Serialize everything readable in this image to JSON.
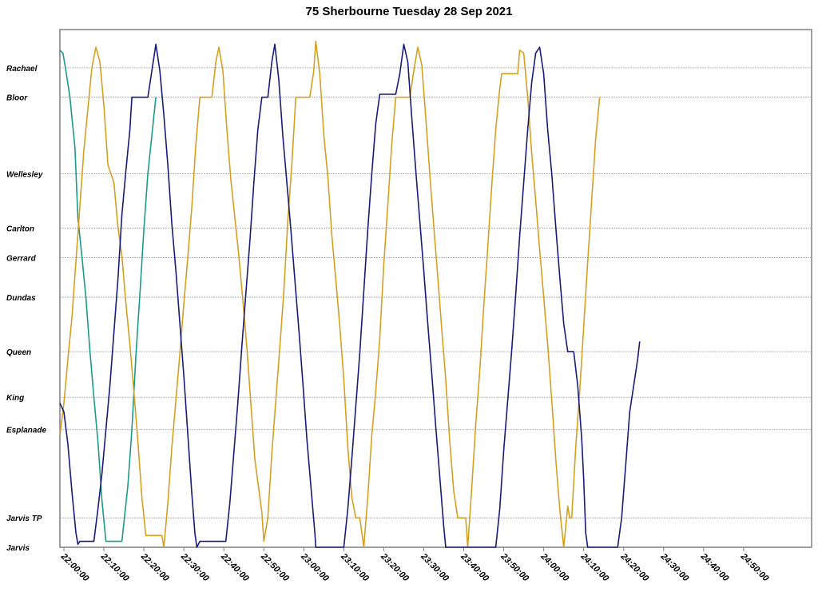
{
  "chart_data": {
    "type": "line",
    "title": "75 Sherbourne Tuesday 28 Sep 2021",
    "xlabel": "",
    "ylabel": "",
    "x_unit": "time",
    "xlim": [
      "21:59:00",
      "25:07:00"
    ],
    "x_ticks": [
      "22:00:00",
      "22:10:00",
      "22:20:00",
      "22:30:00",
      "22:40:00",
      "22:50:00",
      "23:00:00",
      "23:10:00",
      "23:20:00",
      "23:30:00",
      "23:40:00",
      "23:50:00",
      "24:00:00",
      "24:10:00",
      "24:20:00",
      "24:30:00",
      "24:40:00",
      "24:50:00"
    ],
    "stops": [
      {
        "name": "Rachael",
        "dist": 16.3
      },
      {
        "name": "Bloor",
        "dist": 15.3
      },
      {
        "name": "Wellesley",
        "dist": 12.7
      },
      {
        "name": "Carlton",
        "dist": 10.85
      },
      {
        "name": "Gerrard",
        "dist": 9.85
      },
      {
        "name": "Dundas",
        "dist": 8.5
      },
      {
        "name": "Queen",
        "dist": 6.65
      },
      {
        "name": "King",
        "dist": 5.1
      },
      {
        "name": "Esplanade",
        "dist": 4.0
      },
      {
        "name": "Jarvis TP",
        "dist": 1.0
      },
      {
        "name": "Jarvis",
        "dist": 0
      }
    ],
    "ylim": [
      0,
      17.6
    ],
    "grid": true,
    "legend": "none",
    "series": [
      {
        "color": "#1a9a8a",
        "points": [
          [
            "21:59:00",
            16.9
          ],
          [
            "21:59:45",
            16.8
          ],
          [
            "22:00:30",
            16.2
          ],
          [
            "22:01:30",
            15.3
          ],
          [
            "22:02:45",
            13.6
          ],
          [
            "22:03:30",
            11.2
          ],
          [
            "22:04:30",
            9.9
          ],
          [
            "22:05:30",
            8.5
          ],
          [
            "22:06:30",
            6.7
          ],
          [
            "22:07:30",
            5.1
          ],
          [
            "22:08:30",
            3.6
          ],
          [
            "22:09:30",
            1.6
          ],
          [
            "22:10:30",
            0.2
          ],
          [
            "22:11:00",
            0.2
          ],
          [
            "22:14:30",
            0.2
          ],
          [
            "22:16:00",
            2.1
          ],
          [
            "22:17:00",
            4.0
          ],
          [
            "22:18:00",
            6.5
          ],
          [
            "22:19:00",
            8.6
          ],
          [
            "22:20:00",
            10.8
          ],
          [
            "22:21:00",
            12.7
          ],
          [
            "22:22:00",
            14.0
          ],
          [
            "22:23:00",
            15.3
          ]
        ]
      },
      {
        "color": "#d4a020",
        "points": [
          [
            "21:59:00",
            3.8
          ],
          [
            "22:00:00",
            4.9
          ],
          [
            "22:01:00",
            6.4
          ],
          [
            "22:02:00",
            7.8
          ],
          [
            "22:03:00",
            9.7
          ],
          [
            "22:04:00",
            11.6
          ],
          [
            "22:05:00",
            13.5
          ],
          [
            "22:06:00",
            14.9
          ],
          [
            "22:07:00",
            16.3
          ],
          [
            "22:08:00",
            17.0
          ],
          [
            "22:09:00",
            16.5
          ],
          [
            "22:10:00",
            15.0
          ],
          [
            "22:11:00",
            13.0
          ],
          [
            "22:11:45",
            12.7
          ],
          [
            "22:12:30",
            12.4
          ],
          [
            "22:13:30",
            10.9
          ],
          [
            "22:14:30",
            9.9
          ],
          [
            "22:15:30",
            8.3
          ],
          [
            "22:16:30",
            6.9
          ],
          [
            "22:17:30",
            5.3
          ],
          [
            "22:18:30",
            3.6
          ],
          [
            "22:19:30",
            1.7
          ],
          [
            "22:20:30",
            0.4
          ],
          [
            "22:21:00",
            0.4
          ],
          [
            "22:24:30",
            0.4
          ],
          [
            "22:25:00",
            0.0
          ],
          [
            "22:26:00",
            1.5
          ],
          [
            "22:27:00",
            3.4
          ],
          [
            "22:28:00",
            5.0
          ],
          [
            "22:29:00",
            6.6
          ],
          [
            "22:30:00",
            8.3
          ],
          [
            "22:31:00",
            9.9
          ],
          [
            "22:32:00",
            11.6
          ],
          [
            "22:33:00",
            13.7
          ],
          [
            "22:34:00",
            15.3
          ],
          [
            "22:37:00",
            15.3
          ],
          [
            "22:38:00",
            16.5
          ],
          [
            "22:38:45",
            17.0
          ],
          [
            "22:39:45",
            16.2
          ],
          [
            "22:40:45",
            14.2
          ],
          [
            "22:41:45",
            12.5
          ],
          [
            "22:42:45",
            11.2
          ],
          [
            "22:43:45",
            9.9
          ],
          [
            "22:44:45",
            8.4
          ],
          [
            "22:45:45",
            6.8
          ],
          [
            "22:46:45",
            4.9
          ],
          [
            "22:47:45",
            3.0
          ],
          [
            "22:48:30",
            2.2
          ],
          [
            "22:49:30",
            1.2
          ],
          [
            "22:50:00",
            0.2
          ],
          [
            "22:51:00",
            1.0
          ],
          [
            "22:52:00",
            3.2
          ],
          [
            "22:53:00",
            5.0
          ],
          [
            "22:54:00",
            6.8
          ],
          [
            "22:55:00",
            8.7
          ],
          [
            "22:56:00",
            11.1
          ],
          [
            "22:57:00",
            13.0
          ],
          [
            "22:58:00",
            15.3
          ],
          [
            "23:01:30",
            15.3
          ],
          [
            "23:02:30",
            16.2
          ],
          [
            "23:03:00",
            17.2
          ],
          [
            "23:04:00",
            16.1
          ],
          [
            "23:05:00",
            14.0
          ],
          [
            "23:06:00",
            12.6
          ],
          [
            "23:07:00",
            10.6
          ],
          [
            "23:08:00",
            9.1
          ],
          [
            "23:09:00",
            7.5
          ],
          [
            "23:10:00",
            5.7
          ],
          [
            "23:11:00",
            3.4
          ],
          [
            "23:12:00",
            1.7
          ],
          [
            "23:13:00",
            1.0
          ],
          [
            "23:14:00",
            1.0
          ],
          [
            "23:15:00",
            0.0
          ],
          [
            "23:16:00",
            1.7
          ],
          [
            "23:17:00",
            3.8
          ],
          [
            "23:18:00",
            5.3
          ],
          [
            "23:19:00",
            7.1
          ],
          [
            "23:20:00",
            9.6
          ],
          [
            "23:21:00",
            11.6
          ],
          [
            "23:22:00",
            13.7
          ],
          [
            "23:23:00",
            15.3
          ],
          [
            "23:26:30",
            15.3
          ],
          [
            "23:27:30",
            16.2
          ],
          [
            "23:28:30",
            17.0
          ],
          [
            "23:29:30",
            16.4
          ],
          [
            "23:30:30",
            14.6
          ],
          [
            "23:31:30",
            12.7
          ],
          [
            "23:32:30",
            10.9
          ],
          [
            "23:33:30",
            9.2
          ],
          [
            "23:34:30",
            7.4
          ],
          [
            "23:35:30",
            5.7
          ],
          [
            "23:36:30",
            3.6
          ],
          [
            "23:37:30",
            1.9
          ],
          [
            "23:38:30",
            1.0
          ],
          [
            "23:40:30",
            1.0
          ],
          [
            "23:41:00",
            0.0
          ],
          [
            "23:42:00",
            2.0
          ],
          [
            "23:43:00",
            4.2
          ],
          [
            "23:44:00",
            6.0
          ],
          [
            "23:45:00",
            8.2
          ],
          [
            "23:46:00",
            10.2
          ],
          [
            "23:47:00",
            12.3
          ],
          [
            "23:48:00",
            14.2
          ],
          [
            "23:49:00",
            15.6
          ],
          [
            "23:49:30",
            16.1
          ],
          [
            "23:53:30",
            16.1
          ],
          [
            "23:54:00",
            16.9
          ],
          [
            "23:55:00",
            16.8
          ],
          [
            "23:56:00",
            15.3
          ],
          [
            "23:57:00",
            13.4
          ],
          [
            "23:58:00",
            11.8
          ],
          [
            "23:59:00",
            10.1
          ],
          [
            "24:00:00",
            8.5
          ],
          [
            "24:01:00",
            6.9
          ],
          [
            "24:02:00",
            5.0
          ],
          [
            "24:03:00",
            3.0
          ],
          [
            "24:04:00",
            1.3
          ],
          [
            "24:05:00",
            0.0
          ],
          [
            "24:06:00",
            1.4
          ],
          [
            "24:06:30",
            1.0
          ],
          [
            "24:07:00",
            1.0
          ],
          [
            "24:08:00",
            3.4
          ],
          [
            "24:09:00",
            5.3
          ],
          [
            "24:10:00",
            7.5
          ],
          [
            "24:11:00",
            9.7
          ],
          [
            "24:12:00",
            11.8
          ],
          [
            "24:13:00",
            13.9
          ],
          [
            "24:14:00",
            15.3
          ]
        ]
      },
      {
        "color": "#1a1a78",
        "points": [
          [
            "21:59:00",
            4.9
          ],
          [
            "22:00:00",
            4.6
          ],
          [
            "22:01:00",
            3.5
          ],
          [
            "22:02:00",
            1.9
          ],
          [
            "22:03:00",
            0.5
          ],
          [
            "22:03:30",
            0.1
          ],
          [
            "22:04:00",
            0.2
          ],
          [
            "22:07:30",
            0.2
          ],
          [
            "22:08:30",
            1.3
          ],
          [
            "22:09:30",
            2.5
          ],
          [
            "22:10:30",
            4.0
          ],
          [
            "22:11:30",
            5.5
          ],
          [
            "22:12:30",
            7.3
          ],
          [
            "22:13:30",
            9.1
          ],
          [
            "22:14:30",
            11.3
          ],
          [
            "22:15:30",
            12.8
          ],
          [
            "22:16:30",
            14.2
          ],
          [
            "22:17:00",
            15.3
          ],
          [
            "22:21:00",
            15.3
          ],
          [
            "22:22:00",
            16.2
          ],
          [
            "22:23:00",
            17.1
          ],
          [
            "22:24:00",
            16.2
          ],
          [
            "22:25:00",
            14.7
          ],
          [
            "22:26:00",
            13.0
          ],
          [
            "22:27:00",
            11.0
          ],
          [
            "22:28:00",
            9.4
          ],
          [
            "22:29:00",
            7.6
          ],
          [
            "22:30:00",
            5.8
          ],
          [
            "22:31:00",
            3.8
          ],
          [
            "22:32:00",
            1.8
          ],
          [
            "22:32:45",
            0.5
          ],
          [
            "22:33:15",
            0.0
          ],
          [
            "22:34:00",
            0.2
          ],
          [
            "22:40:30",
            0.2
          ],
          [
            "22:41:30",
            1.5
          ],
          [
            "22:42:30",
            3.2
          ],
          [
            "22:43:30",
            4.9
          ],
          [
            "22:44:30",
            6.8
          ],
          [
            "22:45:30",
            8.6
          ],
          [
            "22:46:30",
            10.4
          ],
          [
            "22:47:30",
            12.4
          ],
          [
            "22:48:30",
            14.2
          ],
          [
            "22:49:30",
            15.3
          ],
          [
            "22:51:00",
            15.3
          ],
          [
            "22:52:00",
            16.5
          ],
          [
            "22:52:45",
            17.1
          ],
          [
            "22:53:45",
            15.9
          ],
          [
            "22:54:45",
            14.0
          ],
          [
            "22:55:45",
            12.4
          ],
          [
            "22:56:45",
            10.8
          ],
          [
            "22:57:45",
            9.1
          ],
          [
            "22:58:45",
            7.4
          ],
          [
            "22:59:45",
            5.6
          ],
          [
            "23:00:45",
            3.7
          ],
          [
            "23:01:45",
            2.1
          ],
          [
            "23:02:45",
            0.5
          ],
          [
            "23:03:00",
            0.0
          ],
          [
            "23:10:00",
            0.0
          ],
          [
            "23:11:00",
            1.3
          ],
          [
            "23:12:00",
            3.0
          ],
          [
            "23:13:00",
            4.8
          ],
          [
            "23:14:00",
            6.6
          ],
          [
            "23:15:00",
            8.7
          ],
          [
            "23:16:00",
            10.8
          ],
          [
            "23:17:00",
            12.7
          ],
          [
            "23:18:00",
            14.4
          ],
          [
            "23:19:00",
            15.4
          ],
          [
            "23:23:00",
            15.4
          ],
          [
            "23:24:00",
            16.1
          ],
          [
            "23:25:00",
            17.1
          ],
          [
            "23:26:00",
            16.5
          ],
          [
            "23:27:00",
            14.6
          ],
          [
            "23:28:00",
            12.8
          ],
          [
            "23:29:00",
            11.1
          ],
          [
            "23:30:00",
            9.4
          ],
          [
            "23:31:00",
            7.6
          ],
          [
            "23:32:00",
            5.9
          ],
          [
            "23:33:00",
            4.1
          ],
          [
            "23:34:00",
            2.4
          ],
          [
            "23:35:00",
            0.7
          ],
          [
            "23:35:30",
            0.0
          ],
          [
            "23:48:00",
            0.0
          ],
          [
            "23:49:00",
            1.3
          ],
          [
            "23:50:00",
            3.3
          ],
          [
            "23:51:00",
            5.0
          ],
          [
            "23:52:00",
            6.7
          ],
          [
            "23:53:00",
            8.6
          ],
          [
            "23:54:00",
            10.6
          ],
          [
            "23:55:00",
            12.4
          ],
          [
            "23:56:00",
            14.2
          ],
          [
            "23:57:00",
            15.8
          ],
          [
            "23:58:00",
            16.8
          ],
          [
            "23:59:00",
            17.0
          ],
          [
            "24:00:00",
            16.1
          ],
          [
            "24:01:00",
            14.2
          ],
          [
            "24:02:00",
            12.7
          ],
          [
            "24:03:00",
            10.9
          ],
          [
            "24:04:00",
            9.2
          ],
          [
            "24:05:00",
            7.6
          ],
          [
            "24:06:00",
            6.65
          ],
          [
            "24:07:30",
            6.65
          ],
          [
            "24:08:30",
            5.5
          ],
          [
            "24:09:30",
            3.7
          ],
          [
            "24:10:00",
            2.3
          ],
          [
            "24:10:30",
            0.5
          ],
          [
            "24:11:00",
            0.0
          ],
          [
            "24:18:30",
            0.0
          ],
          [
            "24:19:30",
            1.0
          ],
          [
            "24:20:30",
            2.8
          ],
          [
            "24:21:30",
            4.6
          ],
          [
            "24:22:30",
            5.5
          ],
          [
            "24:23:30",
            6.4
          ],
          [
            "24:24:00",
            7.0
          ]
        ]
      }
    ]
  }
}
